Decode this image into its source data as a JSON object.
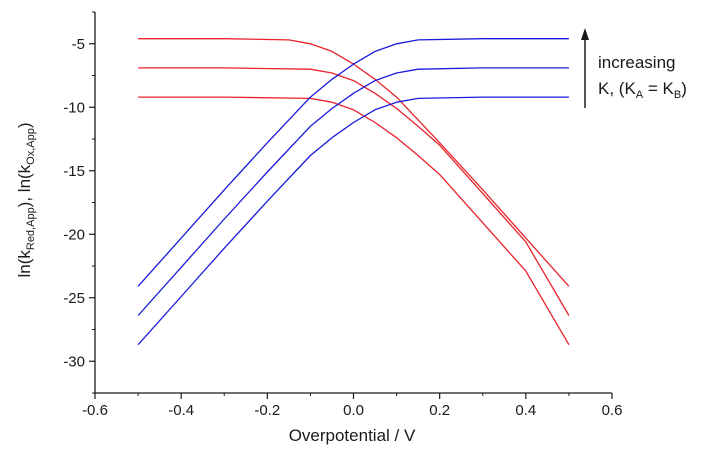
{
  "chart_data": {
    "type": "line",
    "xlabel": "Overpotential / V",
    "ylabel": {
      "p1": "ln(k",
      "s1": "Red,App",
      "p2": "), ln(k",
      "s2": "Ox,App",
      "p3": ")"
    },
    "xlim": [
      -0.6,
      0.6
    ],
    "ylim": [
      -32.5,
      -2.5
    ],
    "xticks": [
      "-0.6",
      "-0.4",
      "-0.2",
      "0.0",
      "0.2",
      "0.4",
      "0.6"
    ],
    "xtick_values": [
      -0.6,
      -0.4,
      -0.2,
      0.0,
      0.2,
      0.4,
      0.6
    ],
    "yticks": [
      "-5",
      "-10",
      "-15",
      "-20",
      "-25",
      "-30"
    ],
    "ytick_values": [
      -5,
      -10,
      -15,
      -20,
      -25,
      -30
    ],
    "grid": false,
    "colors": {
      "red": "#e8232b",
      "blue": "#1a1adb",
      "axis": "#1a1a1a"
    },
    "annotation": {
      "line1": "increasing",
      "line2_prefix": "K, (K",
      "sub_a": "A",
      "mid": " = K",
      "sub_b": "B",
      "suffix": ")"
    },
    "series": [
      {
        "color": "red",
        "x": [
          -0.5,
          -0.3,
          -0.15,
          -0.1,
          -0.05,
          0.0,
          0.05,
          0.1,
          0.2,
          0.3,
          0.4,
          0.5
        ],
        "y": [
          -4.6,
          -4.6,
          -4.7,
          -5.0,
          -5.6,
          -6.6,
          -7.8,
          -9.2,
          -12.8,
          -16.5,
          -20.3,
          -24.1
        ]
      },
      {
        "color": "red",
        "x": [
          -0.5,
          -0.3,
          -0.1,
          -0.05,
          0.0,
          0.05,
          0.1,
          0.15,
          0.2,
          0.3,
          0.4,
          0.5
        ],
        "y": [
          -6.9,
          -6.9,
          -7.0,
          -7.3,
          -7.9,
          -8.9,
          -10.1,
          -11.5,
          -13.0,
          -16.8,
          -20.6,
          -26.4
        ]
      },
      {
        "color": "red",
        "x": [
          -0.5,
          -0.3,
          -0.1,
          -0.05,
          0.0,
          0.05,
          0.1,
          0.15,
          0.2,
          0.3,
          0.4,
          0.5
        ],
        "y": [
          -9.2,
          -9.2,
          -9.3,
          -9.6,
          -10.2,
          -11.2,
          -12.4,
          -13.8,
          -15.3,
          -19.1,
          -22.9,
          -28.7
        ]
      },
      {
        "color": "blue",
        "x": [
          -0.5,
          -0.4,
          -0.3,
          -0.2,
          -0.1,
          -0.05,
          0.0,
          0.05,
          0.1,
          0.15,
          0.3,
          0.5
        ],
        "y": [
          -24.1,
          -20.3,
          -16.5,
          -12.8,
          -9.2,
          -7.8,
          -6.6,
          -5.6,
          -5.0,
          -4.7,
          -4.6,
          -4.6
        ]
      },
      {
        "color": "blue",
        "x": [
          -0.5,
          -0.4,
          -0.3,
          -0.2,
          -0.1,
          -0.05,
          0.0,
          0.05,
          0.1,
          0.15,
          0.3,
          0.5
        ],
        "y": [
          -26.4,
          -22.6,
          -18.8,
          -15.1,
          -11.5,
          -10.1,
          -8.9,
          -7.9,
          -7.3,
          -7.0,
          -6.9,
          -6.9
        ]
      },
      {
        "color": "blue",
        "x": [
          -0.5,
          -0.4,
          -0.3,
          -0.2,
          -0.1,
          -0.05,
          0.0,
          0.05,
          0.1,
          0.15,
          0.3,
          0.5
        ],
        "y": [
          -28.7,
          -24.9,
          -21.1,
          -17.4,
          -13.8,
          -12.4,
          -11.2,
          -10.2,
          -9.6,
          -9.3,
          -9.2,
          -9.2
        ]
      }
    ]
  }
}
